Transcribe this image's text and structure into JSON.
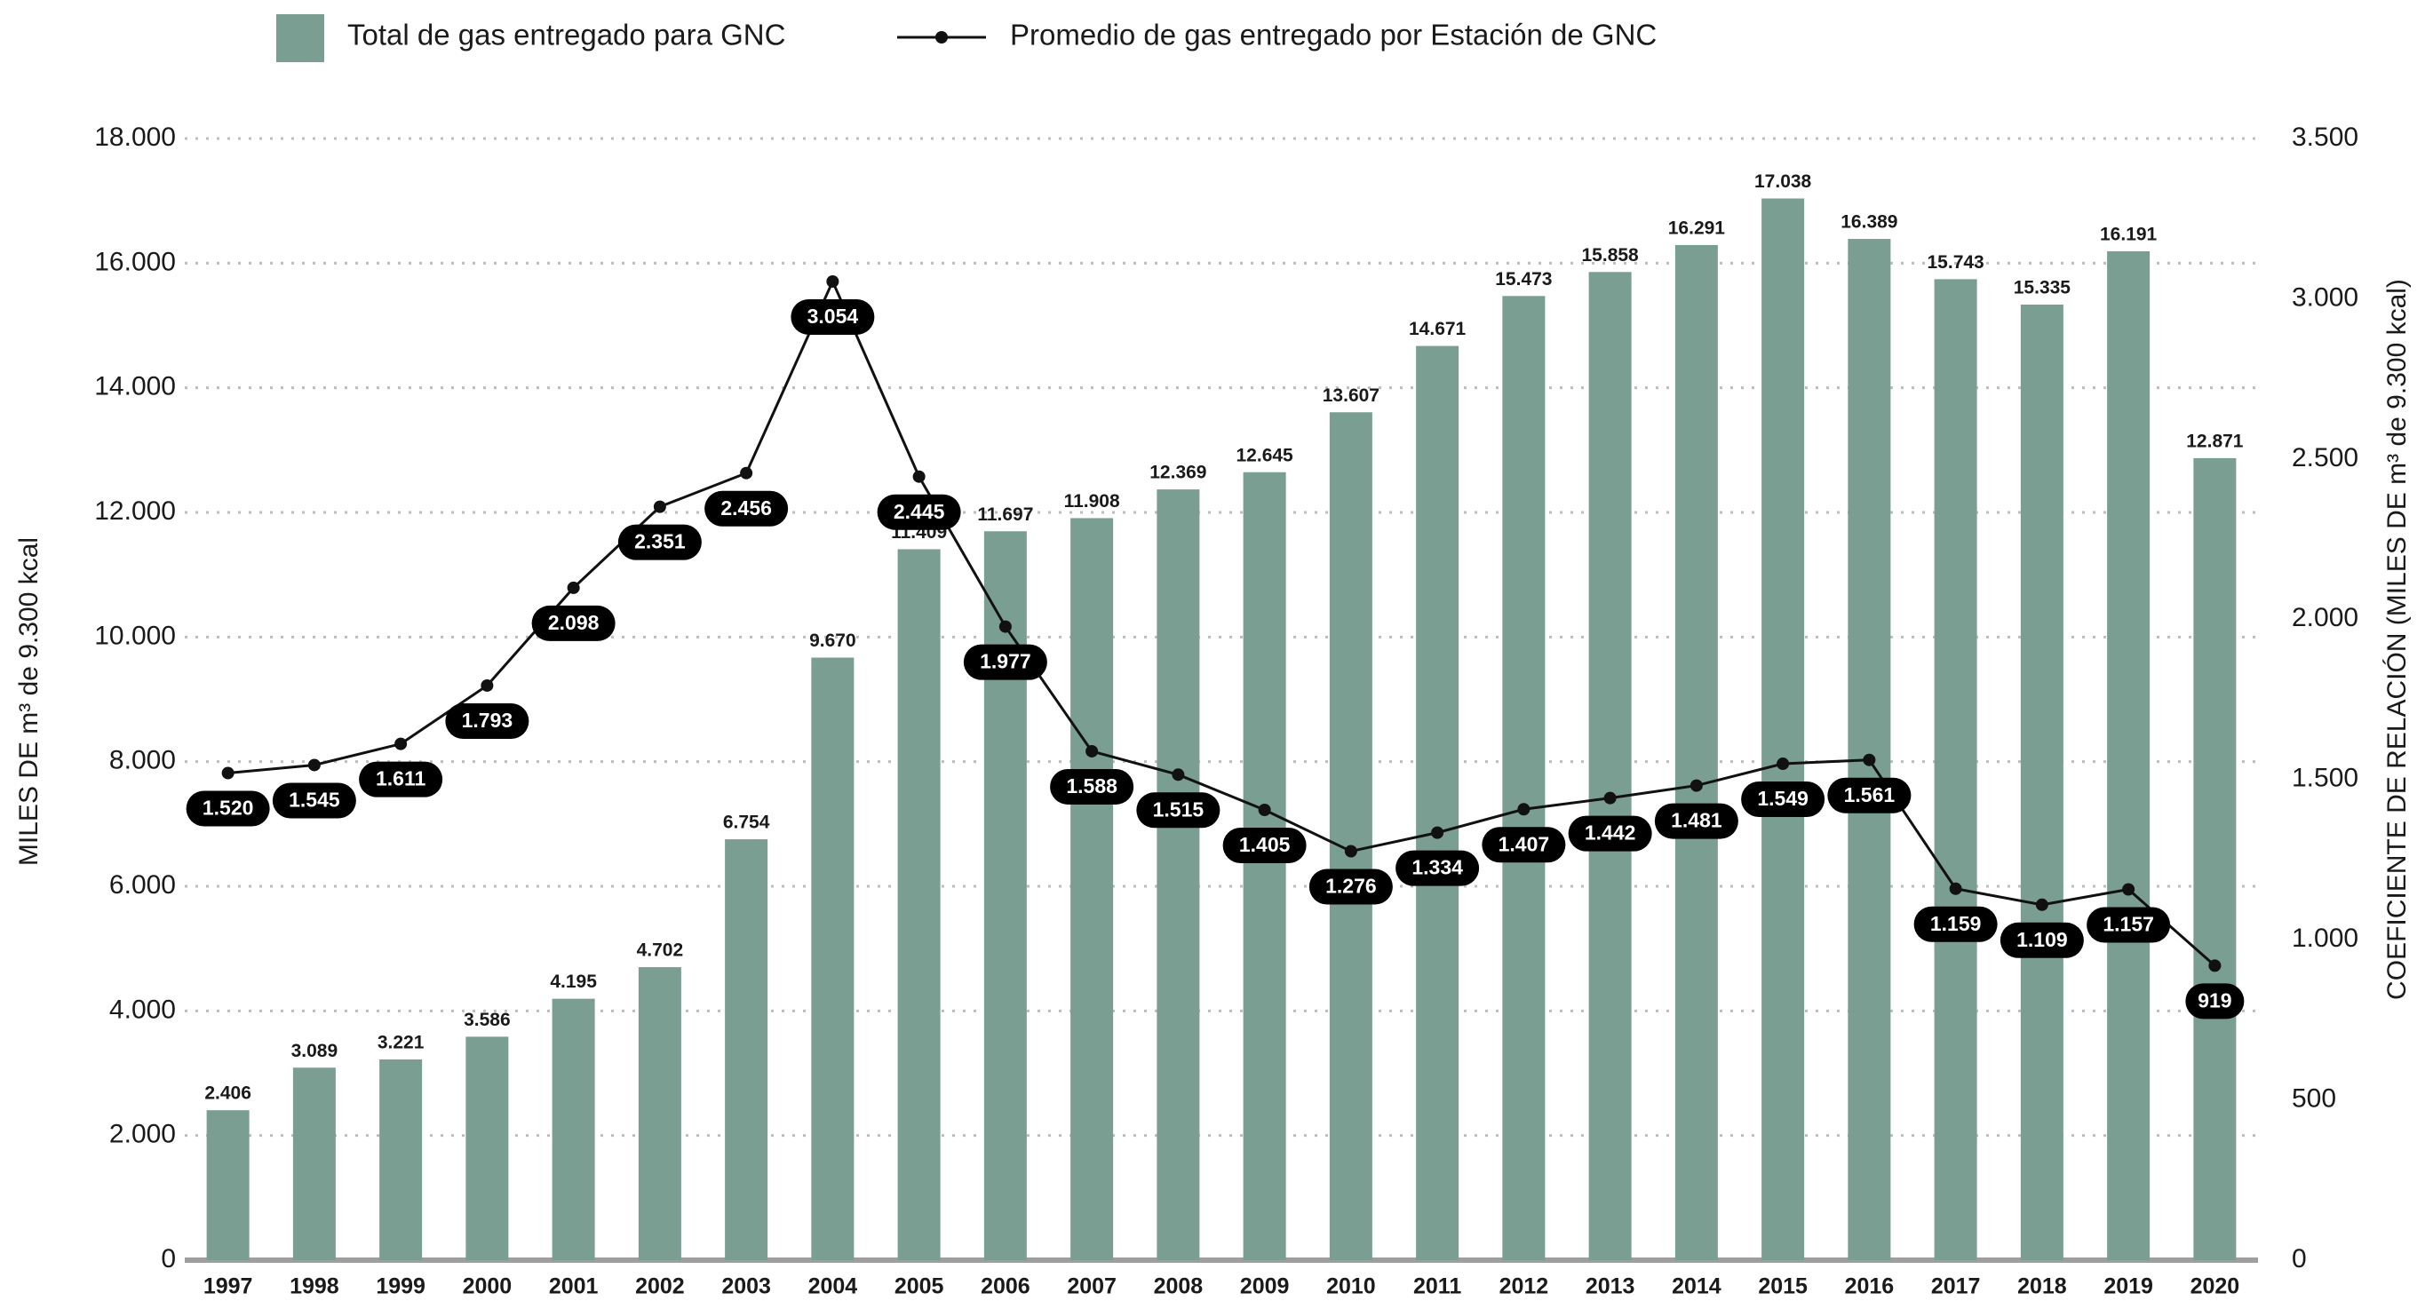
{
  "chart_data": {
    "type": "bar",
    "categories": [
      "1997",
      "1998",
      "1999",
      "2000",
      "2001",
      "2002",
      "2003",
      "2004",
      "2005",
      "2006",
      "2007",
      "2008",
      "2009",
      "2010",
      "2011",
      "2012",
      "2013",
      "2014",
      "2015",
      "2016",
      "2017",
      "2018",
      "2019",
      "2020"
    ],
    "series": [
      {
        "name": "Total de gas entregado para GNC",
        "type": "bar",
        "color": "#7a9e91",
        "values": [
          2406,
          3089,
          3221,
          3586,
          4195,
          4702,
          6754,
          9670,
          11409,
          11697,
          11908,
          12369,
          12645,
          13607,
          14671,
          15473,
          15858,
          16291,
          17038,
          16389,
          15743,
          15335,
          16191,
          12871
        ],
        "value_labels": [
          "2.406",
          "3.089",
          "3.221",
          "3.586",
          "4.195",
          "4.702",
          "6.754",
          "9.670",
          "11.409",
          "11.697",
          "11.908",
          "12.369",
          "12.645",
          "13.607",
          "14.671",
          "15.473",
          "15.858",
          "16.291",
          "17.038",
          "16.389",
          "15.743",
          "15.335",
          "16.191",
          "12.871"
        ]
      },
      {
        "name": "Promedio de gas entregado por Estación de GNC",
        "type": "line",
        "axis": "y2",
        "color": "#111111",
        "values": [
          1520,
          1545,
          1611,
          1793,
          2098,
          2351,
          2456,
          3054,
          2445,
          1977,
          1588,
          1515,
          1405,
          1276,
          1334,
          1407,
          1442,
          1481,
          1549,
          1561,
          1159,
          1109,
          1157,
          919
        ],
        "value_labels": [
          "1.520",
          "1.545",
          "1.611",
          "1.793",
          "2.098",
          "2.351",
          "2.456",
          "3.054",
          "2.445",
          "1.977",
          "1.588",
          "1.515",
          "1.405",
          "1.276",
          "1.334",
          "1.407",
          "1.442",
          "1.481",
          "1.549",
          "1.561",
          "1.159",
          "1.109",
          "1.157",
          "919"
        ]
      }
    ],
    "y_label": "MILES DE m³ de 9.300 kcal",
    "y2_label": "COEFICIENTE DE RELACIÓN (MILES DE m³ de 9.300 kcal)",
    "ylim": [
      0,
      18000
    ],
    "yticks": [
      0,
      {
        "value": 2000,
        "label": "2.000"
      },
      {
        "value": 4000,
        "label": "4.000"
      },
      {
        "value": 6000,
        "label": "6.000"
      },
      {
        "value": 8000,
        "label": "8.000"
      },
      {
        "value": 10000,
        "label": "10.000"
      },
      {
        "value": 12000,
        "label": "12.000"
      },
      {
        "value": 14000,
        "label": "14.000"
      },
      {
        "value": 16000,
        "label": "16.000"
      },
      {
        "value": 18000,
        "label": "18.000"
      }
    ],
    "y2lim": [
      0,
      3500
    ],
    "y2ticks": [
      0,
      500,
      {
        "value": 1000,
        "label": "1.000"
      },
      {
        "value": 1500,
        "label": "1.500"
      },
      {
        "value": 2000,
        "label": "2.000"
      },
      {
        "value": 2500,
        "label": "2.500"
      },
      {
        "value": 3000,
        "label": "3.000"
      },
      {
        "value": 3500,
        "label": "3.500"
      }
    ],
    "grid": true,
    "legend": "top"
  }
}
